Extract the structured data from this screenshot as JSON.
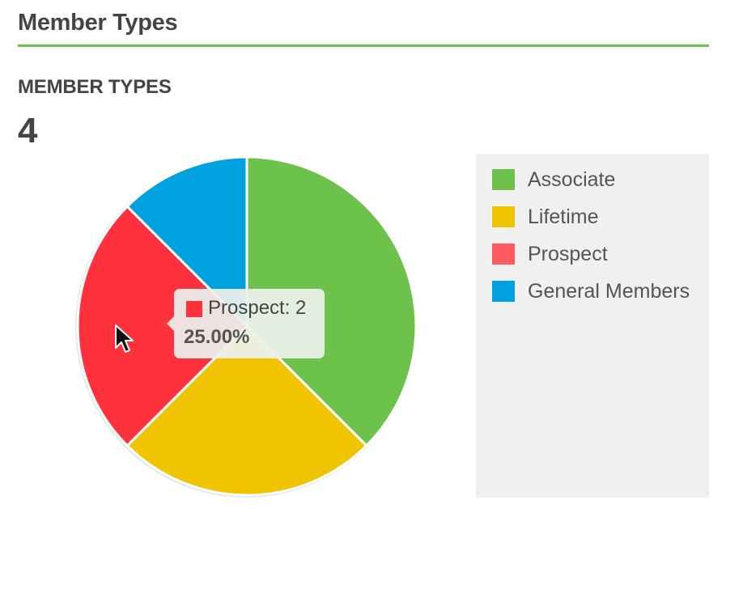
{
  "header": {
    "title": "Member Types"
  },
  "stat": {
    "label": "MEMBER TYPES",
    "value": "4"
  },
  "chart_data": {
    "type": "pie",
    "categories": [
      "Associate",
      "Lifetime",
      "Prospect",
      "General Members"
    ],
    "values": [
      3,
      2,
      2,
      1
    ],
    "colors": [
      "#6cc24a",
      "#f0c400",
      "#ff313c",
      "#00a1e0"
    ],
    "legend_colors": [
      "#6cc24a",
      "#f0c400",
      "#ff5a60",
      "#00a1e0"
    ],
    "legend_position": "right",
    "highlighted": "Prospect"
  },
  "tooltip": {
    "label": "Prospect: 2",
    "percent": "25.00%",
    "color": "#ff313c"
  },
  "legend": {
    "items": [
      {
        "label": "Associate",
        "color": "#6cc24a"
      },
      {
        "label": "Lifetime",
        "color": "#f0c400"
      },
      {
        "label": "Prospect",
        "color": "#ff5a60"
      },
      {
        "label": "General Members",
        "color": "#00a1e0"
      }
    ]
  }
}
